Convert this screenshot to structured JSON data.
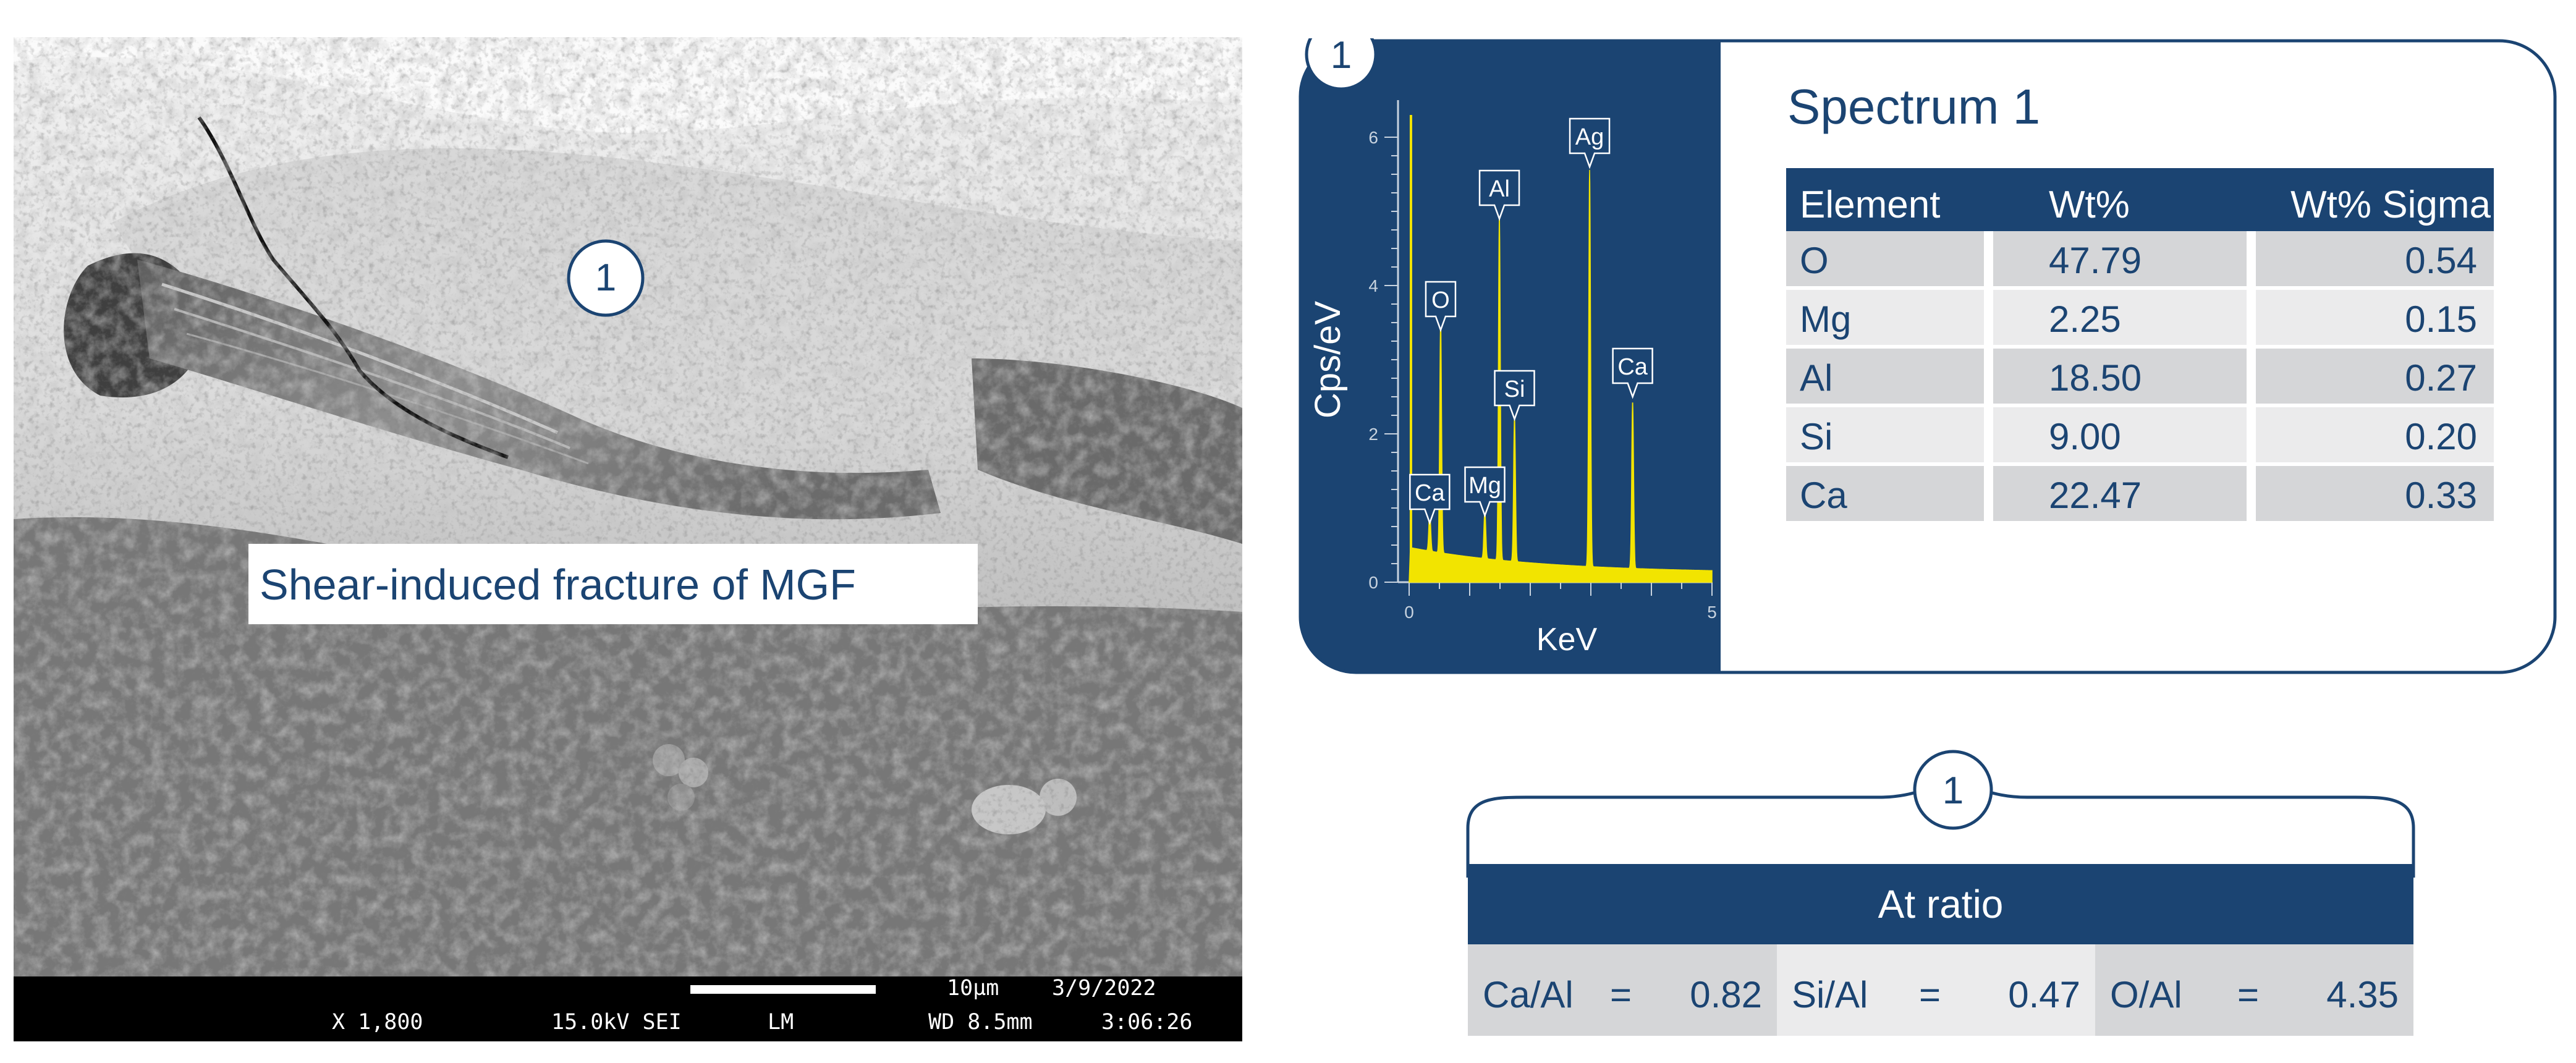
{
  "micrograph": {
    "region_marker": "1",
    "annotation": "Shear-induced fracture of MGF",
    "scale_bar_label": "10µm",
    "date": "3/9/2022",
    "magnification": "X 1,800",
    "voltage_mode": "15.0kV SEI",
    "detector": "LM",
    "working_distance": "WD 8.5mm",
    "time": "3:06:26"
  },
  "spectrum_panel": {
    "marker": "1",
    "title": "Spectrum 1",
    "table": {
      "headers": [
        "Element",
        "Wt%",
        "Wt% Sigma"
      ],
      "rows": [
        {
          "element": "O",
          "wt": "47.79",
          "sigma": "0.54"
        },
        {
          "element": "Mg",
          "wt": "2.25",
          "sigma": "0.15"
        },
        {
          "element": "Al",
          "wt": "18.50",
          "sigma": "0.27"
        },
        {
          "element": "Si",
          "wt": "9.00",
          "sigma": "0.20"
        },
        {
          "element": "Ca",
          "wt": "22.47",
          "sigma": "0.33"
        }
      ]
    }
  },
  "ratio_panel": {
    "marker": "1",
    "title": "At ratio",
    "ratios": [
      {
        "label": "Ca/Al",
        "eq": "=",
        "value": "0.82"
      },
      {
        "label": "Si/Al",
        "eq": "=",
        "value": "0.47"
      },
      {
        "label": "O/Al",
        "eq": "=",
        "value": "4.35"
      }
    ]
  },
  "chart_data": {
    "type": "line",
    "xlabel": "KeV",
    "ylabel": "Cps/eV",
    "xlim": [
      0,
      5
    ],
    "ylim": [
      0,
      6.5
    ],
    "xticks": [
      "0",
      "5"
    ],
    "yticks": [
      "0",
      "2",
      "4",
      "6"
    ],
    "peaks": [
      {
        "label": "O",
        "x": 0.52,
        "y": 3.4
      },
      {
        "label": "Ca",
        "x": 0.34,
        "y": 0.8
      },
      {
        "label": "Mg",
        "x": 1.25,
        "y": 0.9
      },
      {
        "label": "Al",
        "x": 1.49,
        "y": 4.9
      },
      {
        "label": "Si",
        "x": 1.74,
        "y": 2.2
      },
      {
        "label": "Ag",
        "x": 2.98,
        "y": 5.6
      },
      {
        "label": "Ca",
        "x": 3.69,
        "y": 2.5
      }
    ],
    "colors": {
      "background": "#1b4472",
      "spectrum": "#f2e400",
      "axis": "#c8d3df"
    }
  }
}
